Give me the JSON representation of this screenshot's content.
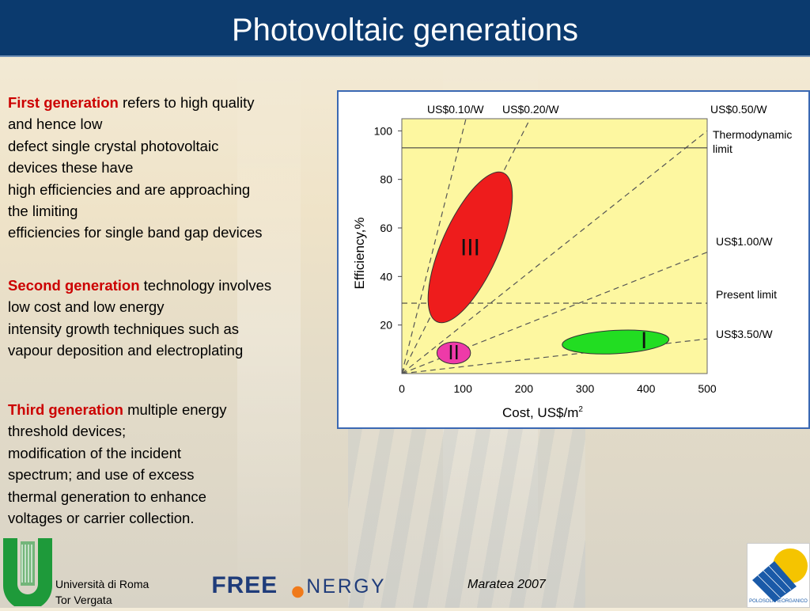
{
  "slide": {
    "title": "Photovoltaic generations"
  },
  "paragraphs": [
    {
      "lead": "First generation",
      "rest_first": " refers to high quality",
      "lines": [
        "and hence low",
        "defect single crystal photovoltaic",
        "devices these have",
        "high efficiencies and are approaching",
        "the limiting",
        "efficiencies for single band gap devices"
      ]
    },
    {
      "lead": "Second generation",
      "rest_first": " technology involves",
      "lines": [
        "low cost and low energy",
        "intensity growth techniques such as",
        "vapour deposition and electroplating"
      ]
    },
    {
      "lead": "Third generation",
      "rest_first": " multiple energy",
      "lines": [
        "threshold devices;",
        "modification of the incident",
        "spectrum; and use of excess",
        "thermal generation to enhance",
        "voltages or carrier collection."
      ]
    }
  ],
  "chart_data": {
    "type": "scatter",
    "xlabel": "Cost, US$/m",
    "xlabel_sup": "2",
    "ylabel": "Efficiency,%",
    "xlim": [
      0,
      500
    ],
    "ylim": [
      0,
      100
    ],
    "x_ticks": [
      0,
      100,
      200,
      300,
      400,
      500
    ],
    "y_ticks": [
      20,
      40,
      60,
      80,
      100
    ],
    "plot_color": "#fdf7a0",
    "cost_lines": [
      {
        "label": "US$0.10/W",
        "cost_per_watt": 0.1
      },
      {
        "label": "US$0.20/W",
        "cost_per_watt": 0.2
      },
      {
        "label": "US$0.50/W",
        "cost_per_watt": 0.5
      },
      {
        "label": "US$1.00/W",
        "cost_per_watt": 1.0
      },
      {
        "label": "US$3.50/W",
        "cost_per_watt": 3.5
      }
    ],
    "horizontal_lines": [
      {
        "label": "Thermodynamic",
        "label2": "limit",
        "y": 93,
        "style": "solid"
      },
      {
        "label": "Present limit",
        "y": 29,
        "style": "dashed"
      }
    ],
    "regions": [
      {
        "label": "III",
        "color": "#ee1c1c",
        "cx": 112,
        "cy": 52,
        "rx_cost": 145,
        "ry_eff": 32
      },
      {
        "label": "II",
        "color": "#ee3aa8",
        "cx": 85,
        "cy": 8.5,
        "rx_cost": 55,
        "ry_eff": 4.5
      },
      {
        "label": "I",
        "color": "#22dd22",
        "cx": 350,
        "cy": 13,
        "rx_cost": 175,
        "ry_eff": 4.8
      }
    ]
  },
  "footer": {
    "university_line1": "Università di Roma",
    "university_line2": "Tor Vergata",
    "brand_part1": "FREE",
    "brand_part2": "NERGY",
    "event": "Maratea 2007",
    "polo_label": "POLOSOLAREORGANICO"
  }
}
